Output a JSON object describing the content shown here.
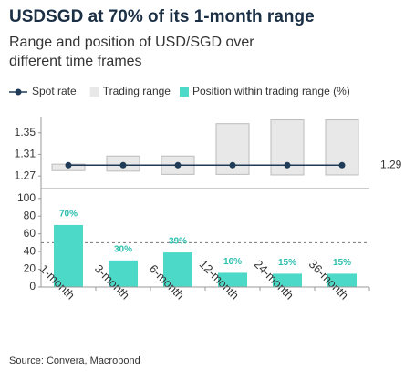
{
  "header": {
    "title": "USDSGD at 70% of its 1-month range",
    "subtitle": "Range and position of USD/SGD over different time frames"
  },
  "source": "Source: Convera, Macrobond",
  "chart_data": [
    {
      "type": "range",
      "series": [
        {
          "name": "Spot rate",
          "color": "#1f3b57",
          "values": [
            1.29,
            1.29,
            1.29,
            1.29,
            1.29,
            1.29
          ]
        }
      ],
      "ranges": {
        "name": "Trading range",
        "color": "#e8e8e8",
        "low": [
          1.28,
          1.279,
          1.273,
          1.273,
          1.272,
          1.272
        ],
        "high": [
          1.292,
          1.307,
          1.307,
          1.367,
          1.374,
          1.374
        ]
      },
      "end_label": 1.29,
      "ylim": [
        1.25,
        1.38
      ],
      "yticks": [
        1.27,
        1.31,
        1.35
      ]
    },
    {
      "type": "bar",
      "categories": [
        "1-month",
        "3-month",
        "6-month",
        "12-month",
        "24-month",
        "36-month"
      ],
      "series": [
        {
          "name": "Position within trading range (%)",
          "color": "#4dd9c8",
          "values": [
            70,
            30,
            39,
            16,
            15,
            15
          ],
          "value_labels": [
            "70%",
            "30%",
            "39%",
            "16%",
            "15%",
            "15%"
          ]
        }
      ],
      "reference_line": 50,
      "ylim": [
        0,
        108
      ],
      "yticks": [
        0,
        20,
        40,
        60,
        80,
        100
      ]
    }
  ]
}
